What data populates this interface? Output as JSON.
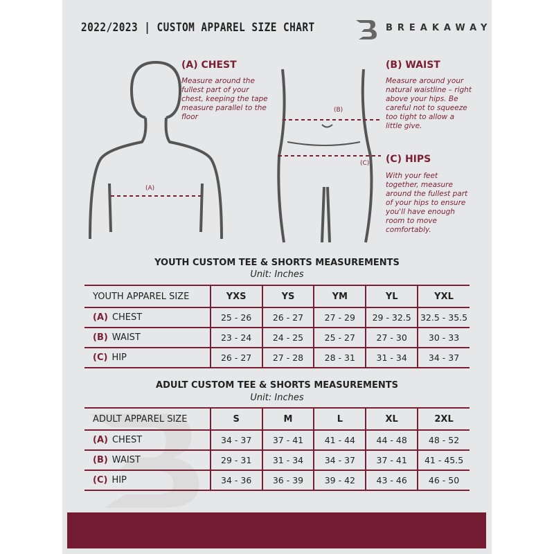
{
  "header": {
    "title": "2022/2023  |  CUSTOM APPAREL SIZE CHART",
    "brand": "BREAKAWAY",
    "logo_letter": "B"
  },
  "measures": {
    "chest": {
      "heading": "(A) CHEST",
      "text": "Measure around the fullest part of your chest, keeping the tape measure parallel to the floor",
      "marker": "(A)"
    },
    "waist": {
      "heading": "(B) WAIST",
      "text": "Measure around your natural waistline – right above your hips. Be careful not to squeeze too tight to allow a little give.",
      "marker": "(B)"
    },
    "hips": {
      "heading": "(C) HIPS",
      "text": "With your feet together, measure around the fullest part of your hips to ensure you'll have enough room to move comfortably.",
      "marker": "(C)"
    }
  },
  "youth": {
    "title": "YOUTH CUSTOM TEE & SHORTS MEASUREMENTS",
    "unit": "Unit: Inches",
    "size_label": "YOUTH APPAREL SIZE",
    "sizes": [
      "YXS",
      "YS",
      "YM",
      "YL",
      "YXL"
    ],
    "rows": [
      {
        "code": "(A)",
        "name": "CHEST",
        "values": [
          "25 - 26",
          "26 - 27",
          "27 - 29",
          "29 - 32.5",
          "32.5 - 35.5"
        ]
      },
      {
        "code": "(B)",
        "name": "WAIST",
        "values": [
          "23 - 24",
          "24 - 25",
          "25 - 27",
          "27 - 30",
          "30 - 33"
        ]
      },
      {
        "code": "(C)",
        "name": "HIP",
        "values": [
          "26 - 27",
          "27 - 28",
          "28 - 31",
          "31 - 34",
          "34 - 37"
        ]
      }
    ]
  },
  "adult": {
    "title": "ADULT CUSTOM TEE & SHORTS MEASUREMENTS",
    "unit": "Unit: Inches",
    "size_label": "ADULT APPAREL SIZE",
    "sizes": [
      "S",
      "M",
      "L",
      "XL",
      "2XL"
    ],
    "rows": [
      {
        "code": "(A)",
        "name": "CHEST",
        "values": [
          "34 - 37",
          "37 - 41",
          "41 - 44",
          "44 - 48",
          "48 - 52"
        ]
      },
      {
        "code": "(B)",
        "name": "WAIST",
        "values": [
          "29 - 31",
          "31 - 34",
          "34 - 37",
          "37 - 41",
          "41 - 45.5"
        ]
      },
      {
        "code": "(C)",
        "name": "HIP",
        "values": [
          "34 - 36",
          "36 - 39",
          "39 - 42",
          "43 - 46",
          "46 - 50"
        ]
      }
    ]
  },
  "colors": {
    "accent": "#7a1f33",
    "panel": "#e6e7e8"
  }
}
